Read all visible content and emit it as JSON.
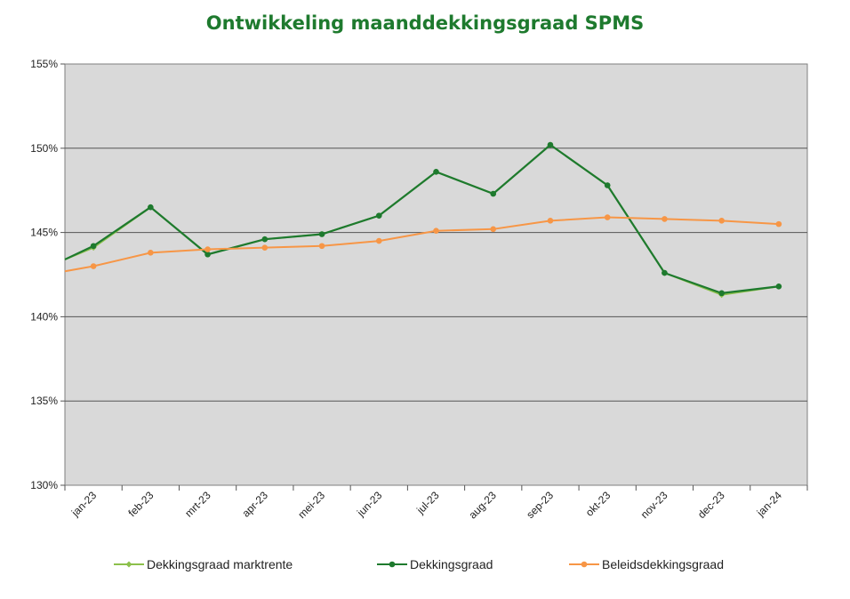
{
  "chart_data": {
    "type": "line",
    "title": "Ontwikkeling maanddekkingsgraad SPMS",
    "xlabel": "",
    "ylabel": "",
    "categories": [
      "jan-23",
      "feb-23",
      "mrt-23",
      "apr-23",
      "mei-23",
      "jun-23",
      "jul-23",
      "aug-23",
      "sep-23",
      "okt-23",
      "nov-23",
      "dec-23",
      "jan-24"
    ],
    "ylim": [
      130,
      155
    ],
    "yticks": [
      "130%",
      "135%",
      "140%",
      "145%",
      "150%",
      "155%"
    ],
    "y_start": {
      "markt": 143.4,
      "dekking": 143.4,
      "beleid": 142.7
    },
    "series": [
      {
        "name": "Dekkingsgraad marktrente",
        "color": "#8cc04b",
        "values": [
          144.1,
          146.5,
          143.7,
          144.6,
          144.9,
          146.0,
          148.6,
          147.3,
          150.2,
          147.8,
          142.6,
          141.3,
          141.8
        ]
      },
      {
        "name": "Dekkingsgraad",
        "color": "#1e7a2e",
        "values": [
          144.2,
          146.5,
          143.7,
          144.6,
          144.9,
          146.0,
          148.6,
          147.3,
          150.2,
          147.8,
          142.6,
          141.4,
          141.8
        ]
      },
      {
        "name": "Beleidsdekkingsgraad",
        "color": "#f79646",
        "values": [
          143.0,
          143.8,
          144.0,
          144.1,
          144.2,
          144.5,
          145.1,
          145.2,
          145.7,
          145.9,
          145.8,
          145.7,
          145.5
        ]
      }
    ],
    "grid": true,
    "legend_position": "bottom",
    "plot_background": "#d9d9d9"
  }
}
